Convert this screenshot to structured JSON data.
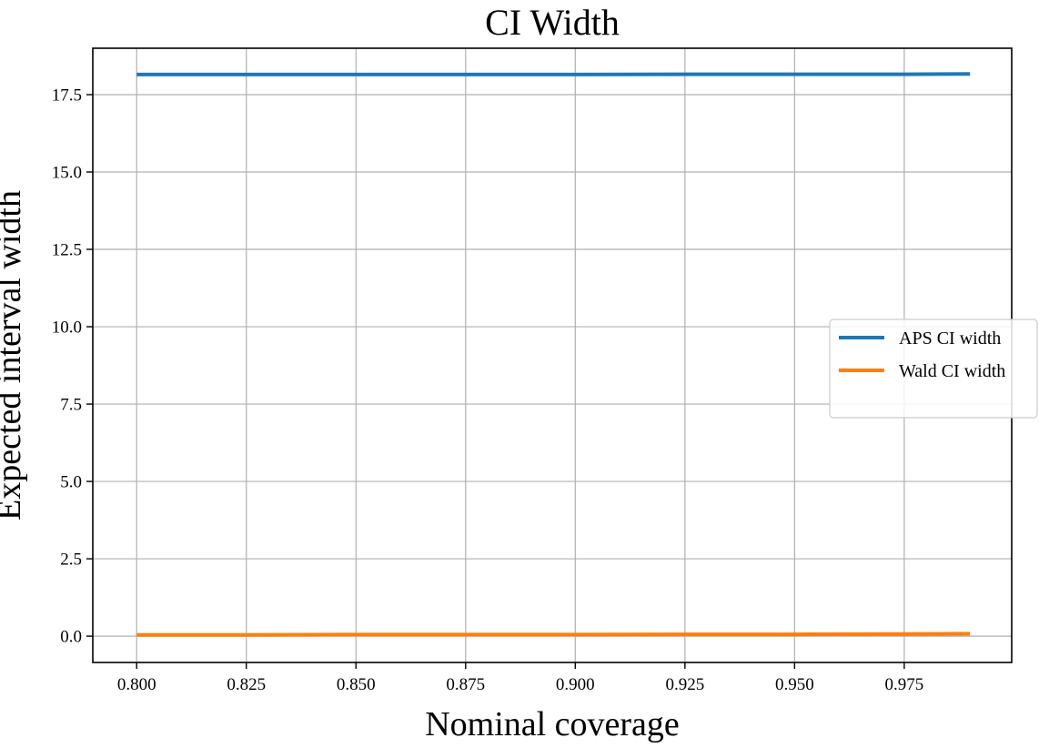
{
  "chart_data": {
    "type": "line",
    "title": "CI Width",
    "xlabel": "Nominal coverage",
    "ylabel": "Expected interval width",
    "xlim": [
      0.79,
      0.9995
    ],
    "ylim": [
      -0.85,
      19.0
    ],
    "xticks": [
      0.8,
      0.825,
      0.85,
      0.875,
      0.9,
      0.925,
      0.95,
      0.975
    ],
    "xtick_labels": [
      "0.800",
      "0.825",
      "0.850",
      "0.875",
      "0.900",
      "0.925",
      "0.950",
      "0.975"
    ],
    "yticks": [
      0.0,
      2.5,
      5.0,
      7.5,
      10.0,
      12.5,
      15.0,
      17.5
    ],
    "ytick_labels": [
      "0.0",
      "2.5",
      "5.0",
      "7.5",
      "10.0",
      "12.5",
      "15.0",
      "17.5"
    ],
    "grid": true,
    "legend_position": "center-right",
    "x": [
      0.8,
      0.825,
      0.85,
      0.875,
      0.9,
      0.925,
      0.95,
      0.975,
      0.99
    ],
    "series": [
      {
        "name": "APS CI width",
        "color": "#1f77b4",
        "values": [
          18.15,
          18.15,
          18.15,
          18.15,
          18.15,
          18.16,
          18.16,
          18.16,
          18.17
        ]
      },
      {
        "name": "Wald CI width",
        "color": "#ff7f0e",
        "values": [
          0.04,
          0.04,
          0.05,
          0.05,
          0.05,
          0.06,
          0.06,
          0.07,
          0.08
        ]
      }
    ]
  }
}
